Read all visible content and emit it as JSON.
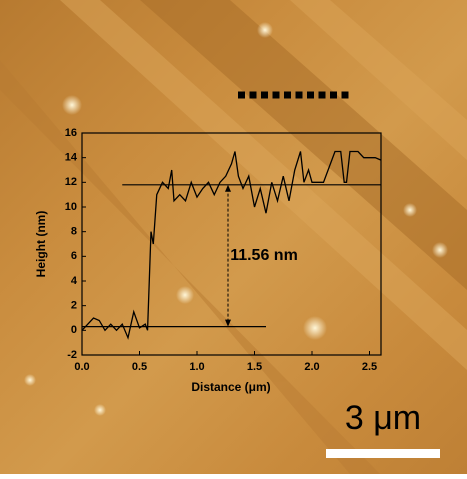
{
  "chart_data": {
    "type": "line",
    "y_label": "Height (nm)",
    "x_label": "Distance (μm)",
    "annotation": "11.56 nm",
    "scale_bar": "3 μm",
    "color": "#000000",
    "x": [
      0,
      0.05,
      0.1,
      0.15,
      0.2,
      0.25,
      0.3,
      0.35,
      0.4,
      0.45,
      0.5,
      0.55,
      0.57,
      0.6,
      0.62,
      0.65,
      0.7,
      0.75,
      0.78,
      0.8,
      0.85,
      0.9,
      0.95,
      1.0,
      1.05,
      1.1,
      1.15,
      1.2,
      1.25,
      1.3,
      1.33,
      1.36,
      1.4,
      1.45,
      1.5,
      1.55,
      1.6,
      1.65,
      1.7,
      1.75,
      1.8,
      1.85,
      1.9,
      1.93,
      1.97,
      2.0,
      2.1,
      2.2,
      2.25,
      2.28,
      2.3,
      2.33,
      2.4,
      2.45,
      2.5,
      2.55,
      2.6
    ],
    "values": [
      0,
      0.5,
      1,
      0.8,
      0,
      0.5,
      0,
      0.5,
      -0.6,
      1.5,
      0.2,
      0.5,
      0,
      8,
      7,
      11,
      12,
      11.5,
      13,
      10.5,
      11,
      10.5,
      12,
      10.8,
      11.5,
      12,
      11,
      12,
      12.5,
      13.5,
      14.5,
      12.5,
      11.5,
      12.5,
      10,
      11.5,
      9.5,
      12,
      10.5,
      12.5,
      10.5,
      13,
      14.5,
      12,
      13,
      12,
      12,
      14.5,
      14.5,
      12,
      12,
      14.5,
      14.5,
      14,
      14,
      14,
      13.8
    ],
    "hlines": [
      {
        "y": 0.3,
        "x": [
          0,
          1.6
        ]
      },
      {
        "y": 11.8,
        "x": [
          0.35,
          2.6
        ]
      }
    ],
    "xlim": [
      0,
      2.6
    ],
    "ylim": [
      -2,
      16
    ],
    "xticks": [
      {
        "value": 0,
        "label": "0.0"
      },
      0.5,
      {
        "value": 1,
        "label": "1.0"
      },
      1.5,
      {
        "value": 2,
        "label": "2.0"
      },
      2.5
    ],
    "yticks": [
      -2,
      0,
      2,
      4,
      6,
      8,
      10,
      12,
      14,
      16
    ]
  }
}
